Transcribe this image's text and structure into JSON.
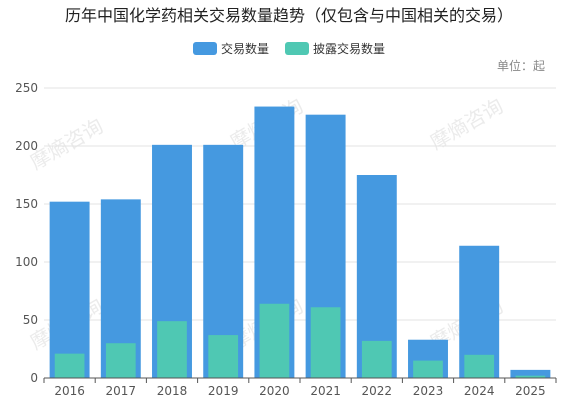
{
  "chart_data": {
    "type": "bar",
    "title": "历年中国化学药相关交易数量趋势（仅包含与中国相关的交易）",
    "unit_label": "单位：起",
    "categories": [
      "2016",
      "2017",
      "2018",
      "2019",
      "2020",
      "2021",
      "2022",
      "2023",
      "2024",
      "2025"
    ],
    "series": [
      {
        "name": "交易数量",
        "values": [
          152,
          154,
          201,
          201,
          234,
          227,
          175,
          33,
          114,
          7
        ]
      },
      {
        "name": "披露交易数量",
        "values": [
          21,
          30,
          49,
          37,
          64,
          61,
          32,
          15,
          20,
          2
        ]
      }
    ],
    "ylim": [
      0,
      250
    ],
    "yticks": [
      0,
      50,
      100,
      150,
      200,
      250
    ],
    "grid": true,
    "legend_position": "top-center",
    "watermark": "摩熵咨询",
    "colors": {
      "series1": "#4599e0",
      "series2": "#4fc8b3"
    }
  }
}
